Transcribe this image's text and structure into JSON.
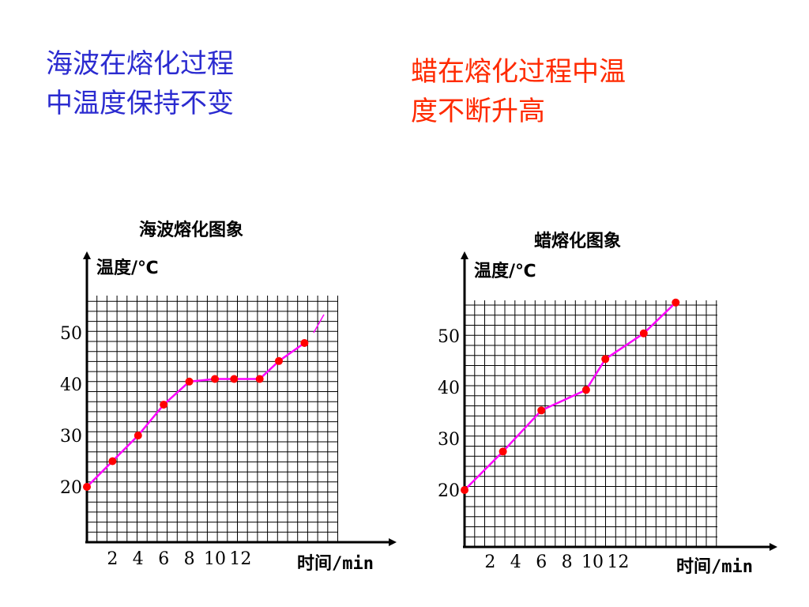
{
  "captions": {
    "left": "海波在熔化过程\n中温度保持不变",
    "right": "蜡在熔化过程中温\n度不断升高"
  },
  "colors": {
    "left_caption": "#2b2bd0",
    "right_caption": "#ff2a00",
    "line": "#ff00ff",
    "point": "#ff0000",
    "grid": "#000000"
  },
  "chart_data": [
    {
      "type": "line",
      "title": "海波熔化图象",
      "xlabel": "时间/min",
      "ylabel": "温度/℃",
      "xticks": [
        "2",
        "4",
        "6",
        "8",
        "10",
        "12"
      ],
      "yticks": [
        "20",
        "30",
        "40",
        "50"
      ],
      "grid": true,
      "series": [
        {
          "x": [
            0,
            2,
            4,
            6,
            8,
            10,
            11.5,
            13.5,
            15,
            17
          ],
          "y": [
            20,
            25,
            30,
            36,
            40.5,
            41,
            41,
            41,
            44.5,
            48
          ]
        }
      ]
    },
    {
      "type": "line",
      "title": "蜡熔化图象",
      "xlabel": "时间/min",
      "ylabel": "温度/℃",
      "xticks": [
        "2",
        "4",
        "6",
        "8",
        "10",
        "12"
      ],
      "yticks": [
        "20",
        "30",
        "40",
        "50"
      ],
      "grid": true,
      "series": [
        {
          "x": [
            0,
            3,
            6,
            9.5,
            11,
            14,
            16.5
          ],
          "y": [
            20,
            27.5,
            35.5,
            39.5,
            45.5,
            50.5,
            56.5
          ]
        }
      ]
    }
  ]
}
